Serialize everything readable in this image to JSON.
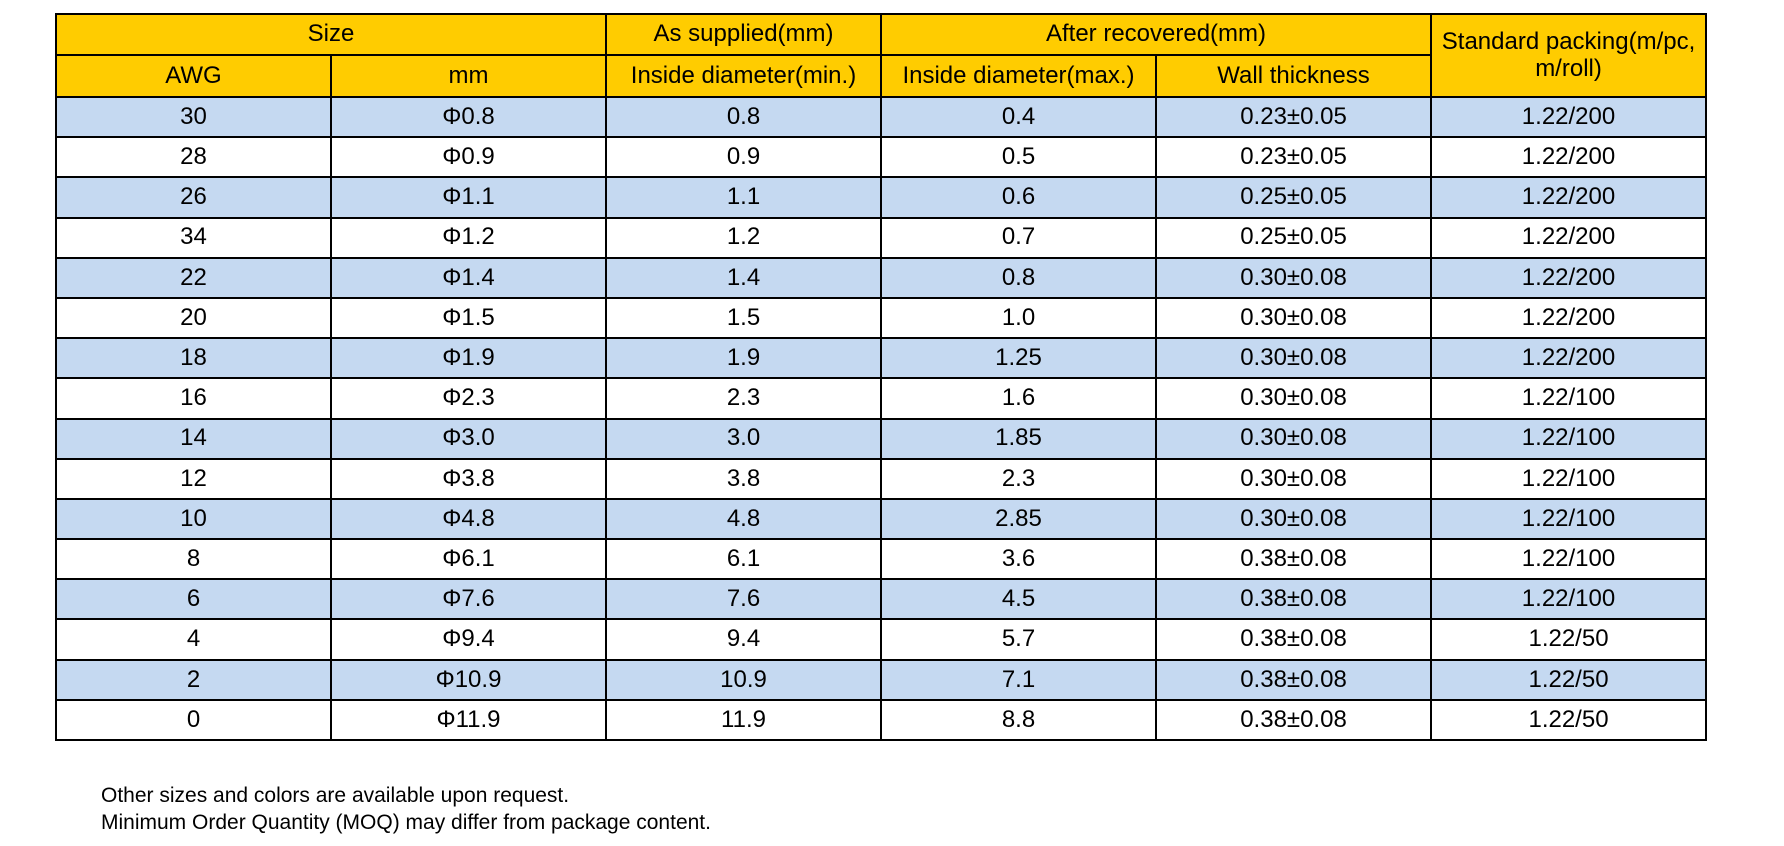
{
  "header": {
    "size": "Size",
    "as_supplied": "As supplied(mm)",
    "after_recovered": "After recovered(mm)",
    "standard_packing": "Standard packing(m/pc, m/roll)",
    "awg": "AWG",
    "mm": "mm",
    "inside_min": "Inside diameter(min.)",
    "inside_max": "Inside diameter(max.)",
    "wall": "Wall thickness"
  },
  "rows": [
    [
      "30",
      "Φ0.8",
      "0.8",
      "0.4",
      "0.23±0.05",
      "1.22/200"
    ],
    [
      "28",
      "Φ0.9",
      "0.9",
      "0.5",
      "0.23±0.05",
      "1.22/200"
    ],
    [
      "26",
      "Φ1.1",
      "1.1",
      "0.6",
      "0.25±0.05",
      "1.22/200"
    ],
    [
      "34",
      "Φ1.2",
      "1.2",
      "0.7",
      "0.25±0.05",
      "1.22/200"
    ],
    [
      "22",
      "Φ1.4",
      "1.4",
      "0.8",
      "0.30±0.08",
      "1.22/200"
    ],
    [
      "20",
      "Φ1.5",
      "1.5",
      "1.0",
      "0.30±0.08",
      "1.22/200"
    ],
    [
      "18",
      "Φ1.9",
      "1.9",
      "1.25",
      "0.30±0.08",
      "1.22/200"
    ],
    [
      "16",
      "Φ2.3",
      "2.3",
      "1.6",
      "0.30±0.08",
      "1.22/100"
    ],
    [
      "14",
      "Φ3.0",
      "3.0",
      "1.85",
      "0.30±0.08",
      "1.22/100"
    ],
    [
      "12",
      "Φ3.8",
      "3.8",
      "2.3",
      "0.30±0.08",
      "1.22/100"
    ],
    [
      "10",
      "Φ4.8",
      "4.8",
      "2.85",
      "0.30±0.08",
      "1.22/100"
    ],
    [
      "8",
      "Φ6.1",
      "6.1",
      "3.6",
      "0.38±0.08",
      "1.22/100"
    ],
    [
      "6",
      "Φ7.6",
      "7.6",
      "4.5",
      "0.38±0.08",
      "1.22/100"
    ],
    [
      "4",
      "Φ9.4",
      "9.4",
      "5.7",
      "0.38±0.08",
      "1.22/50"
    ],
    [
      "2",
      "Φ10.9",
      "10.9",
      "7.1",
      "0.38±0.08",
      "1.22/50"
    ],
    [
      "0",
      "Φ11.9",
      "11.9",
      "8.8",
      "0.38±0.08",
      "1.22/50"
    ]
  ],
  "notes": [
    "Other sizes and colors are available upon request.",
    "Minimum Order Quantity (MOQ) may differ from package content."
  ],
  "colors": {
    "header_bg": "#ffcc00",
    "shaded_row_bg": "#c5d9f1",
    "plain_row_bg": "#ffffff",
    "border": "#000000"
  }
}
